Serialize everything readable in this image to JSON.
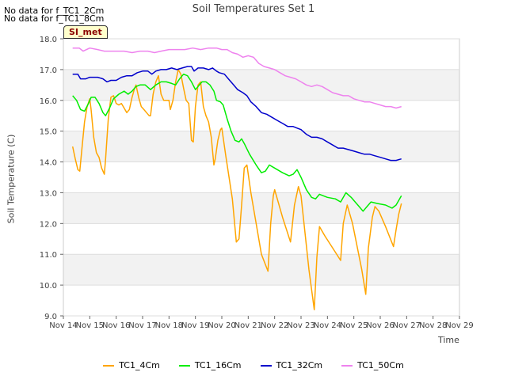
{
  "notes": [
    "No data for f_TC1_2Cm",
    "No data for f_TC1_8Cm"
  ],
  "badge": "SI_met",
  "chart_data": {
    "type": "line",
    "title": "Soil Temperatures Set 1",
    "xlabel": "Time",
    "ylabel": "Soil Temperature (C)",
    "xlim": [
      14,
      29
    ],
    "ylim": [
      9.0,
      18.0
    ],
    "x_ticks": [
      "Nov 14",
      "Nov 15",
      "Nov 16",
      "Nov 17",
      "Nov 18",
      "Nov 19",
      "Nov 20",
      "Nov 21",
      "Nov 22",
      "Nov 23",
      "Nov 24",
      "Nov 25",
      "Nov 26",
      "Nov 27",
      "Nov 28",
      "Nov 29"
    ],
    "y_ticks": [
      "9.0",
      "10.0",
      "11.0",
      "12.0",
      "13.0",
      "14.0",
      "15.0",
      "16.0",
      "17.0",
      "18.0"
    ],
    "grid": "horizontal alternating bands",
    "legend_position": "bottom",
    "series": [
      {
        "name": "TC1_4Cm",
        "color": "#ffa500",
        "points": [
          [
            14.35,
            14.5
          ],
          [
            14.45,
            14.1
          ],
          [
            14.55,
            13.75
          ],
          [
            14.62,
            13.7
          ],
          [
            14.7,
            14.4
          ],
          [
            14.8,
            15.3
          ],
          [
            14.9,
            15.8
          ],
          [
            15.0,
            16.05
          ],
          [
            15.05,
            15.7
          ],
          [
            15.15,
            14.8
          ],
          [
            15.25,
            14.3
          ],
          [
            15.35,
            14.15
          ],
          [
            15.45,
            13.8
          ],
          [
            15.55,
            13.6
          ],
          [
            15.6,
            14.1
          ],
          [
            15.7,
            15.4
          ],
          [
            15.8,
            16.1
          ],
          [
            15.9,
            16.15
          ],
          [
            16.0,
            15.9
          ],
          [
            16.1,
            15.85
          ],
          [
            16.2,
            15.9
          ],
          [
            16.3,
            15.75
          ],
          [
            16.4,
            15.6
          ],
          [
            16.5,
            15.7
          ],
          [
            16.6,
            16.1
          ],
          [
            16.7,
            16.4
          ],
          [
            16.75,
            16.5
          ],
          [
            16.85,
            16.1
          ],
          [
            16.95,
            15.8
          ],
          [
            17.05,
            15.7
          ],
          [
            17.15,
            15.6
          ],
          [
            17.25,
            15.5
          ],
          [
            17.3,
            15.5
          ],
          [
            17.4,
            16.2
          ],
          [
            17.5,
            16.6
          ],
          [
            17.6,
            16.8
          ],
          [
            17.7,
            16.2
          ],
          [
            17.8,
            16.0
          ],
          [
            17.9,
            16.0
          ],
          [
            18.0,
            16.0
          ],
          [
            18.05,
            15.7
          ],
          [
            18.15,
            16.0
          ],
          [
            18.25,
            16.6
          ],
          [
            18.35,
            17.0
          ],
          [
            18.45,
            16.85
          ],
          [
            18.55,
            16.4
          ],
          [
            18.65,
            16.0
          ],
          [
            18.75,
            15.9
          ],
          [
            18.85,
            14.7
          ],
          [
            18.92,
            14.65
          ],
          [
            19.0,
            15.8
          ],
          [
            19.1,
            16.5
          ],
          [
            19.2,
            16.6
          ],
          [
            19.3,
            15.8
          ],
          [
            19.4,
            15.5
          ],
          [
            19.5,
            15.3
          ],
          [
            19.6,
            14.8
          ],
          [
            19.7,
            13.9
          ],
          [
            19.75,
            14.1
          ],
          [
            19.85,
            14.7
          ],
          [
            19.95,
            15.05
          ],
          [
            20.0,
            15.1
          ],
          [
            20.15,
            14.2
          ],
          [
            20.4,
            12.8
          ],
          [
            20.55,
            11.4
          ],
          [
            20.65,
            11.5
          ],
          [
            20.75,
            12.6
          ],
          [
            20.85,
            13.8
          ],
          [
            20.95,
            13.9
          ],
          [
            21.1,
            13.0
          ],
          [
            21.5,
            11.0
          ],
          [
            21.75,
            10.45
          ],
          [
            21.85,
            12.0
          ],
          [
            21.95,
            12.9
          ],
          [
            22.0,
            13.1
          ],
          [
            22.3,
            12.2
          ],
          [
            22.6,
            11.4
          ],
          [
            22.75,
            12.6
          ],
          [
            22.9,
            13.2
          ],
          [
            23.0,
            12.9
          ],
          [
            23.3,
            10.5
          ],
          [
            23.5,
            9.2
          ],
          [
            23.6,
            10.9
          ],
          [
            23.7,
            11.9
          ],
          [
            23.9,
            11.6
          ],
          [
            24.2,
            11.2
          ],
          [
            24.5,
            10.8
          ],
          [
            24.6,
            12.0
          ],
          [
            24.75,
            12.6
          ],
          [
            24.95,
            12.0
          ],
          [
            25.3,
            10.5
          ],
          [
            25.45,
            9.7
          ],
          [
            25.55,
            11.2
          ],
          [
            25.7,
            12.2
          ],
          [
            25.8,
            12.55
          ],
          [
            25.95,
            12.4
          ],
          [
            26.2,
            11.9
          ],
          [
            26.5,
            11.25
          ],
          [
            26.6,
            11.8
          ],
          [
            26.7,
            12.3
          ],
          [
            26.8,
            12.65
          ]
        ]
      },
      {
        "name": "TC1_16Cm",
        "color": "#00ee00",
        "points": [
          [
            14.35,
            16.15
          ],
          [
            14.5,
            16.0
          ],
          [
            14.65,
            15.7
          ],
          [
            14.8,
            15.65
          ],
          [
            14.95,
            15.9
          ],
          [
            15.05,
            16.1
          ],
          [
            15.2,
            16.1
          ],
          [
            15.35,
            15.9
          ],
          [
            15.5,
            15.6
          ],
          [
            15.6,
            15.5
          ],
          [
            15.75,
            15.75
          ],
          [
            15.9,
            16.05
          ],
          [
            16.1,
            16.2
          ],
          [
            16.3,
            16.3
          ],
          [
            16.45,
            16.2
          ],
          [
            16.6,
            16.3
          ],
          [
            16.75,
            16.45
          ],
          [
            16.9,
            16.5
          ],
          [
            17.1,
            16.5
          ],
          [
            17.3,
            16.35
          ],
          [
            17.5,
            16.5
          ],
          [
            17.7,
            16.6
          ],
          [
            17.9,
            16.6
          ],
          [
            18.1,
            16.55
          ],
          [
            18.25,
            16.5
          ],
          [
            18.4,
            16.7
          ],
          [
            18.55,
            16.85
          ],
          [
            18.7,
            16.8
          ],
          [
            18.85,
            16.6
          ],
          [
            19.0,
            16.35
          ],
          [
            19.1,
            16.45
          ],
          [
            19.25,
            16.6
          ],
          [
            19.4,
            16.6
          ],
          [
            19.55,
            16.5
          ],
          [
            19.7,
            16.3
          ],
          [
            19.8,
            16.0
          ],
          [
            19.95,
            15.95
          ],
          [
            20.05,
            15.85
          ],
          [
            20.2,
            15.4
          ],
          [
            20.35,
            15.0
          ],
          [
            20.5,
            14.7
          ],
          [
            20.65,
            14.65
          ],
          [
            20.75,
            14.75
          ],
          [
            20.85,
            14.6
          ],
          [
            21.05,
            14.25
          ],
          [
            21.3,
            13.9
          ],
          [
            21.5,
            13.65
          ],
          [
            21.65,
            13.7
          ],
          [
            21.8,
            13.9
          ],
          [
            22.0,
            13.8
          ],
          [
            22.3,
            13.65
          ],
          [
            22.55,
            13.55
          ],
          [
            22.7,
            13.6
          ],
          [
            22.85,
            13.75
          ],
          [
            23.0,
            13.5
          ],
          [
            23.2,
            13.1
          ],
          [
            23.4,
            12.85
          ],
          [
            23.55,
            12.8
          ],
          [
            23.7,
            12.95
          ],
          [
            24.0,
            12.85
          ],
          [
            24.3,
            12.8
          ],
          [
            24.5,
            12.7
          ],
          [
            24.7,
            13.0
          ],
          [
            24.9,
            12.85
          ],
          [
            25.2,
            12.55
          ],
          [
            25.35,
            12.4
          ],
          [
            25.5,
            12.55
          ],
          [
            25.65,
            12.7
          ],
          [
            25.9,
            12.65
          ],
          [
            26.2,
            12.6
          ],
          [
            26.45,
            12.5
          ],
          [
            26.6,
            12.6
          ],
          [
            26.8,
            12.9
          ]
        ]
      },
      {
        "name": "TC1_32Cm",
        "color": "#0000cc",
        "points": [
          [
            14.35,
            16.85
          ],
          [
            14.55,
            16.85
          ],
          [
            14.65,
            16.7
          ],
          [
            14.85,
            16.7
          ],
          [
            15.0,
            16.75
          ],
          [
            15.3,
            16.75
          ],
          [
            15.5,
            16.7
          ],
          [
            15.65,
            16.6
          ],
          [
            15.8,
            16.65
          ],
          [
            16.0,
            16.65
          ],
          [
            16.2,
            16.75
          ],
          [
            16.4,
            16.8
          ],
          [
            16.6,
            16.8
          ],
          [
            16.8,
            16.9
          ],
          [
            17.0,
            16.95
          ],
          [
            17.2,
            16.95
          ],
          [
            17.35,
            16.85
          ],
          [
            17.5,
            16.95
          ],
          [
            17.7,
            17.0
          ],
          [
            17.9,
            17.0
          ],
          [
            18.1,
            17.05
          ],
          [
            18.3,
            17.0
          ],
          [
            18.5,
            17.05
          ],
          [
            18.7,
            17.1
          ],
          [
            18.85,
            17.1
          ],
          [
            18.95,
            16.95
          ],
          [
            19.1,
            17.05
          ],
          [
            19.3,
            17.05
          ],
          [
            19.5,
            17.0
          ],
          [
            19.65,
            17.05
          ],
          [
            19.8,
            16.95
          ],
          [
            19.9,
            16.9
          ],
          [
            20.1,
            16.85
          ],
          [
            20.25,
            16.7
          ],
          [
            20.4,
            16.55
          ],
          [
            20.6,
            16.35
          ],
          [
            20.8,
            16.25
          ],
          [
            20.95,
            16.15
          ],
          [
            21.1,
            15.95
          ],
          [
            21.3,
            15.8
          ],
          [
            21.5,
            15.6
          ],
          [
            21.7,
            15.55
          ],
          [
            21.9,
            15.45
          ],
          [
            22.1,
            15.35
          ],
          [
            22.3,
            15.25
          ],
          [
            22.5,
            15.15
          ],
          [
            22.7,
            15.15
          ],
          [
            22.85,
            15.1
          ],
          [
            23.0,
            15.05
          ],
          [
            23.2,
            14.9
          ],
          [
            23.4,
            14.8
          ],
          [
            23.6,
            14.8
          ],
          [
            23.8,
            14.75
          ],
          [
            24.0,
            14.65
          ],
          [
            24.2,
            14.55
          ],
          [
            24.4,
            14.45
          ],
          [
            24.6,
            14.45
          ],
          [
            24.8,
            14.4
          ],
          [
            25.0,
            14.35
          ],
          [
            25.2,
            14.3
          ],
          [
            25.4,
            14.25
          ],
          [
            25.6,
            14.25
          ],
          [
            25.8,
            14.2
          ],
          [
            26.0,
            14.15
          ],
          [
            26.2,
            14.1
          ],
          [
            26.4,
            14.05
          ],
          [
            26.6,
            14.05
          ],
          [
            26.8,
            14.1
          ]
        ]
      },
      {
        "name": "TC1_50Cm",
        "color": "#ee82ee",
        "points": [
          [
            14.35,
            17.7
          ],
          [
            14.6,
            17.7
          ],
          [
            14.75,
            17.6
          ],
          [
            15.0,
            17.7
          ],
          [
            15.3,
            17.65
          ],
          [
            15.55,
            17.6
          ],
          [
            15.8,
            17.6
          ],
          [
            16.0,
            17.6
          ],
          [
            16.3,
            17.6
          ],
          [
            16.6,
            17.55
          ],
          [
            16.9,
            17.6
          ],
          [
            17.2,
            17.6
          ],
          [
            17.45,
            17.55
          ],
          [
            17.7,
            17.6
          ],
          [
            18.0,
            17.65
          ],
          [
            18.3,
            17.65
          ],
          [
            18.6,
            17.65
          ],
          [
            18.9,
            17.7
          ],
          [
            19.2,
            17.65
          ],
          [
            19.5,
            17.7
          ],
          [
            19.8,
            17.7
          ],
          [
            20.0,
            17.65
          ],
          [
            20.2,
            17.65
          ],
          [
            20.4,
            17.55
          ],
          [
            20.6,
            17.5
          ],
          [
            20.8,
            17.4
          ],
          [
            21.0,
            17.45
          ],
          [
            21.2,
            17.4
          ],
          [
            21.4,
            17.2
          ],
          [
            21.6,
            17.1
          ],
          [
            21.8,
            17.05
          ],
          [
            22.0,
            17.0
          ],
          [
            22.2,
            16.9
          ],
          [
            22.4,
            16.8
          ],
          [
            22.6,
            16.75
          ],
          [
            22.8,
            16.7
          ],
          [
            23.0,
            16.6
          ],
          [
            23.2,
            16.5
          ],
          [
            23.4,
            16.45
          ],
          [
            23.6,
            16.5
          ],
          [
            23.8,
            16.45
          ],
          [
            24.0,
            16.35
          ],
          [
            24.2,
            16.25
          ],
          [
            24.4,
            16.2
          ],
          [
            24.6,
            16.15
          ],
          [
            24.8,
            16.15
          ],
          [
            25.0,
            16.05
          ],
          [
            25.2,
            16.0
          ],
          [
            25.4,
            15.95
          ],
          [
            25.6,
            15.95
          ],
          [
            25.8,
            15.9
          ],
          [
            26.0,
            15.85
          ],
          [
            26.2,
            15.8
          ],
          [
            26.4,
            15.8
          ],
          [
            26.6,
            15.75
          ],
          [
            26.8,
            15.8
          ]
        ]
      }
    ]
  }
}
